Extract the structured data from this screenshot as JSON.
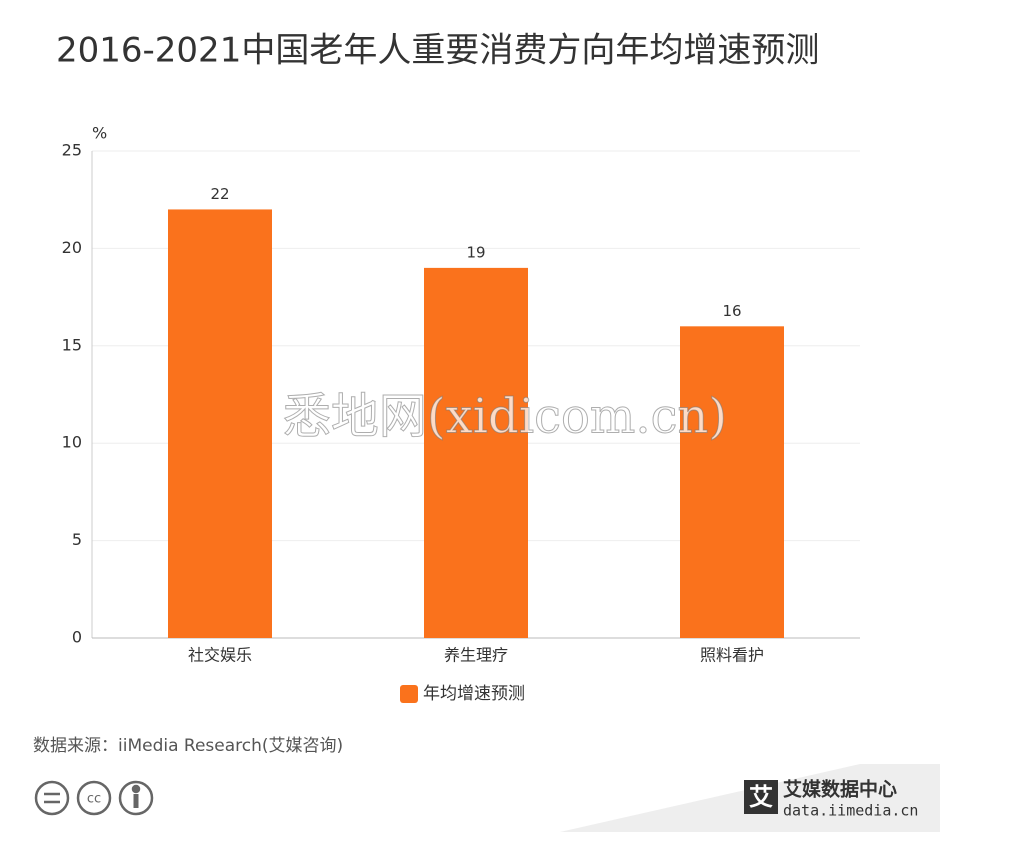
{
  "chart_data": {
    "type": "bar",
    "title": "2016-2021中国老年人重要消费方向年均增速预测",
    "y_unit": "%",
    "categories": [
      "社交娱乐",
      "养生理疗",
      "照料看护"
    ],
    "series": [
      {
        "name": "年均增速预测",
        "color": "#fa721c",
        "values": [
          22,
          19,
          16
        ]
      }
    ],
    "ylim": [
      0,
      25
    ],
    "yticks": [
      0,
      5,
      10,
      15,
      20,
      25
    ],
    "grid": true
  },
  "source": "数据来源：iiMedia Research(艾媒咨询)",
  "watermark": "悉地网(xidicom.cn)",
  "logo": {
    "name": "艾媒数据中心",
    "url": "data.iimedia.cn"
  }
}
